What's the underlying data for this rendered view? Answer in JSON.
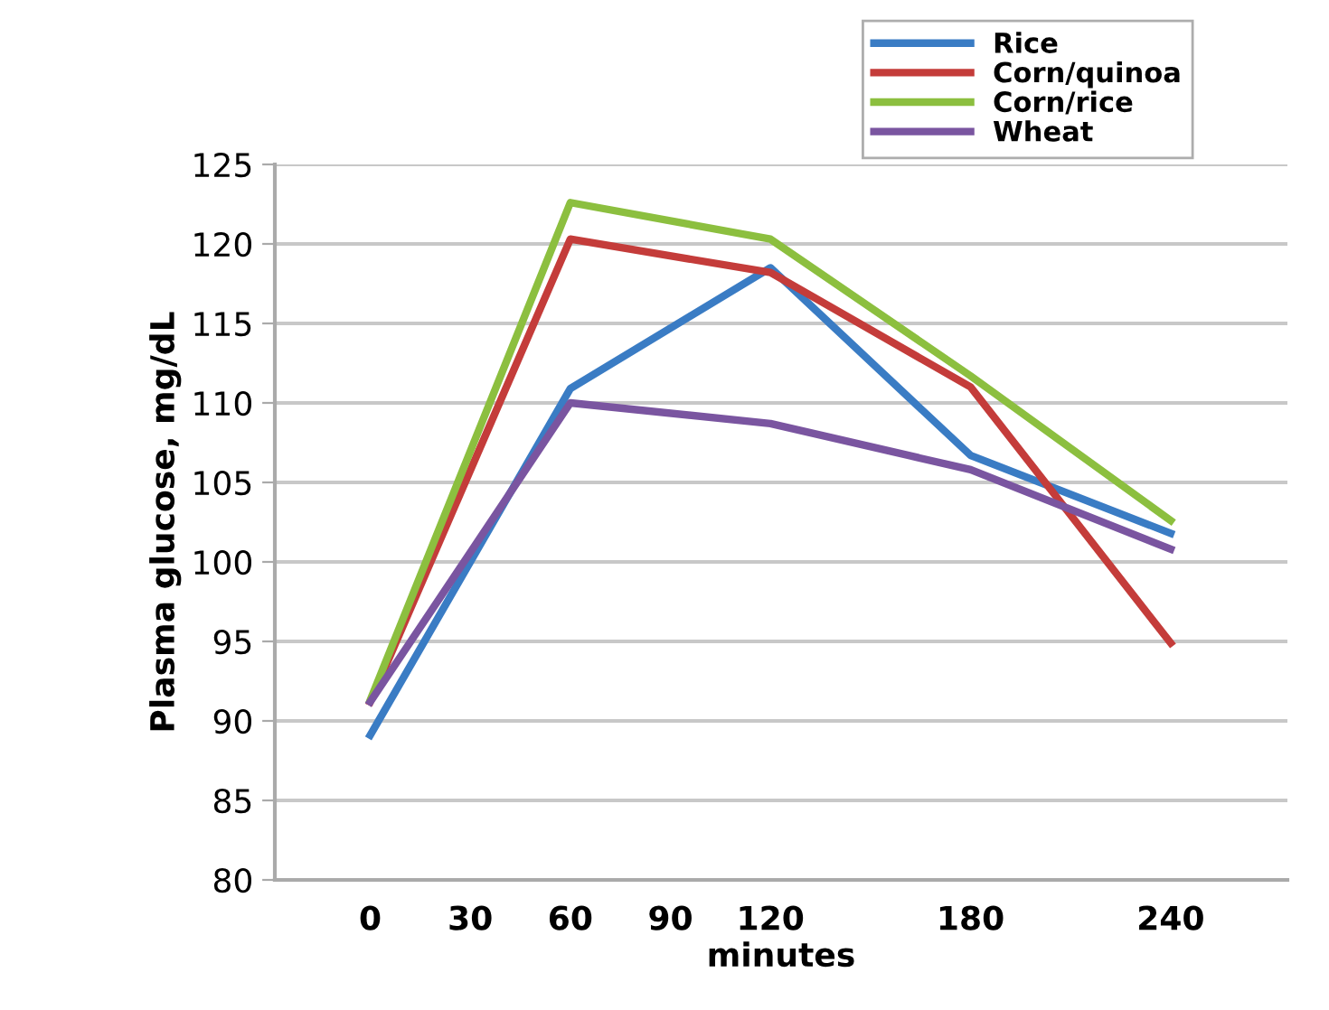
{
  "chart_data": {
    "type": "line",
    "xlabel": "minutes",
    "ylabel": "Plasma glucose, mg/dL",
    "x": [
      0,
      60,
      120,
      180,
      240
    ],
    "series": [
      {
        "name": "Rice",
        "color": "#3a7cc4",
        "values": [
          89.1,
          110.9,
          118.5,
          106.7,
          101.8
        ]
      },
      {
        "name": "Corn/quinoa",
        "color": "#c43c3a",
        "values": [
          91.2,
          120.3,
          118.2,
          111.0,
          94.9
        ]
      },
      {
        "name": "Corn/rice",
        "color": "#8cbf3f",
        "values": [
          91.3,
          122.6,
          120.3,
          111.7,
          102.6
        ]
      },
      {
        "name": "Wheat",
        "color": "#7a55a0",
        "values": [
          91.2,
          110.0,
          108.7,
          105.8,
          100.8
        ]
      }
    ],
    "xlim": [
      -28.6,
      275
    ],
    "xticks": [
      0,
      30,
      60,
      90,
      120,
      180,
      240
    ],
    "ylim": [
      80,
      125
    ],
    "yticks": [
      80,
      85,
      90,
      95,
      100,
      105,
      110,
      115,
      120,
      125
    ],
    "grid": "y",
    "legend": "top right",
    "marker": "none",
    "line_style": "solid"
  }
}
